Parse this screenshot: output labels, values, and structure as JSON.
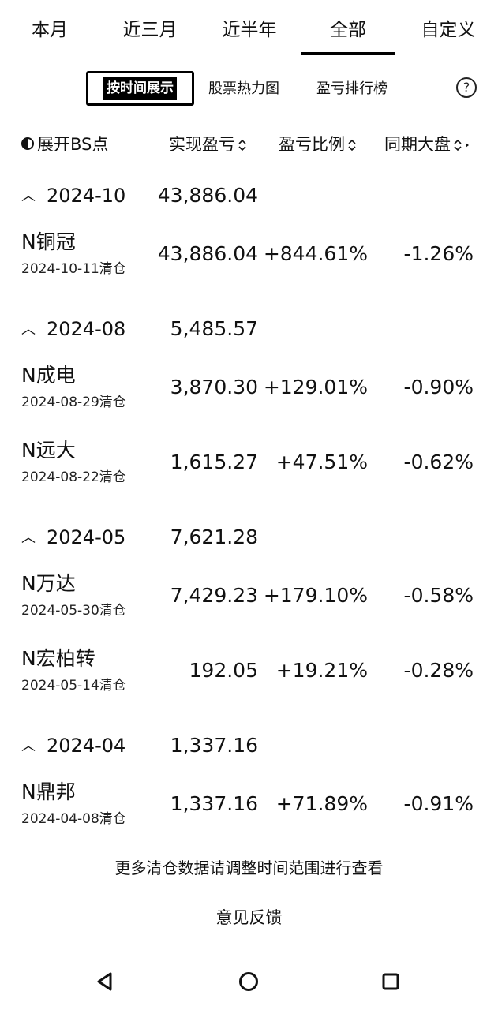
{
  "tabs": [
    {
      "label": "本月"
    },
    {
      "label": "近三月"
    },
    {
      "label": "近半年"
    },
    {
      "label": "全部"
    },
    {
      "label": "自定义"
    }
  ],
  "view_modes": {
    "active": "按时间展示",
    "heatmap": "股票热力图",
    "ranking": "盈亏排行榜",
    "help_icon": "?"
  },
  "columns": {
    "expand": "展开BS点",
    "profit": "实现盈亏",
    "ratio": "盈亏比例",
    "market": "同期大盘"
  },
  "groups": [
    {
      "month": "2024-10",
      "total": "43,886.04",
      "stocks": [
        {
          "name": "N铜冠",
          "date": "2024-10-11清仓",
          "profit": "43,886.04",
          "ratio": "+844.61%",
          "market": "-1.26%"
        }
      ]
    },
    {
      "month": "2024-08",
      "total": "5,485.57",
      "stocks": [
        {
          "name": "N成电",
          "date": "2024-08-29清仓",
          "profit": "3,870.30",
          "ratio": "+129.01%",
          "market": "-0.90%"
        },
        {
          "name": "N远大",
          "date": "2024-08-22清仓",
          "profit": "1,615.27",
          "ratio": "+47.51%",
          "market": "-0.62%"
        }
      ]
    },
    {
      "month": "2024-05",
      "total": "7,621.28",
      "stocks": [
        {
          "name": "N万达",
          "date": "2024-05-30清仓",
          "profit": "7,429.23",
          "ratio": "+179.10%",
          "market": "-0.58%"
        },
        {
          "name": "N宏柏转",
          "date": "2024-05-14清仓",
          "profit": "192.05",
          "ratio": "+19.21%",
          "market": "-0.28%"
        }
      ]
    },
    {
      "month": "2024-04",
      "total": "1,337.16",
      "stocks": [
        {
          "name": "N鼎邦",
          "date": "2024-04-08清仓",
          "profit": "1,337.16",
          "ratio": "+71.89%",
          "market": "-0.91%"
        }
      ]
    }
  ],
  "footer_note": "更多清仓数据请调整时间范围进行查看",
  "feedback": "意见反馈",
  "nav_icons": [
    "back-triangle-icon",
    "home-circle-icon",
    "recents-square-icon"
  ]
}
